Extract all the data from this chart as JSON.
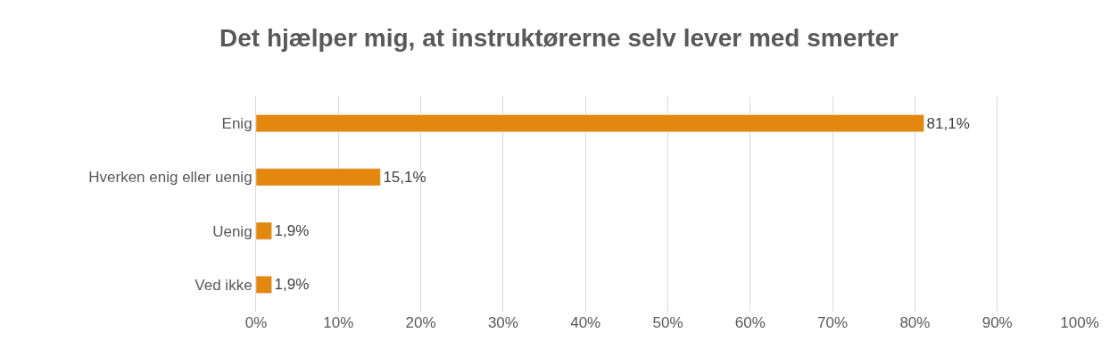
{
  "chart_data": {
    "type": "bar",
    "title": "Det hjælper mig, at instruktørerne selv lever med smerter",
    "orientation": "horizontal",
    "categories": [
      "Enig",
      "Hverken enig eller uenig",
      "Uenig",
      "Ved ikke"
    ],
    "values": [
      81.1,
      15.1,
      1.9,
      1.9
    ],
    "value_labels": [
      "81,1%",
      "15,1%",
      "1,9%",
      "1,9%"
    ],
    "color": "#e3870e",
    "xlim": [
      0,
      100
    ],
    "xticks": [
      {
        "value": 0,
        "label": "0%"
      },
      {
        "value": 10,
        "label": "10%"
      },
      {
        "value": 20,
        "label": "20%"
      },
      {
        "value": 30,
        "label": "30%"
      },
      {
        "value": 40,
        "label": "40%"
      },
      {
        "value": 50,
        "label": "50%"
      },
      {
        "value": 60,
        "label": "60%"
      },
      {
        "value": 70,
        "label": "70%"
      },
      {
        "value": 80,
        "label": "80%"
      },
      {
        "value": 90,
        "label": "90%"
      },
      {
        "value": 100,
        "label": "100%"
      }
    ],
    "grid": "x"
  }
}
